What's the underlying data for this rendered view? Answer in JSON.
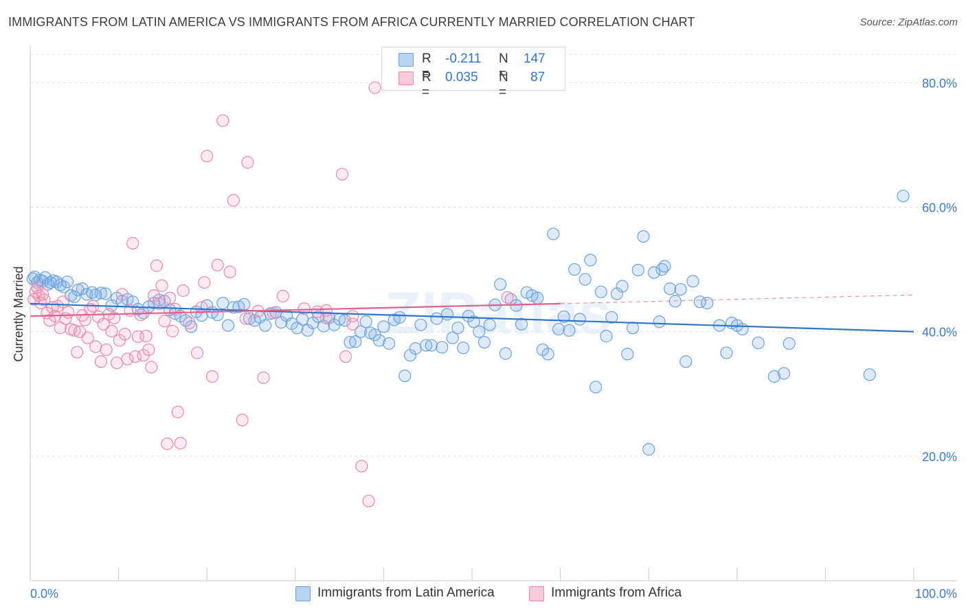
{
  "title": "IMMIGRANTS FROM LATIN AMERICA VS IMMIGRANTS FROM AFRICA CURRENTLY MARRIED CORRELATION CHART",
  "source": "Source: ZipAtlas.com",
  "watermark": "ZIPatlas",
  "legend_stats": [
    {
      "r_label": "R =",
      "r_value": "-0.211",
      "n_label": "N =",
      "n_value": "147"
    },
    {
      "r_label": "R =",
      "r_value": "0.035",
      "n_label": "N =",
      "n_value": "87"
    }
  ],
  "chart_data": {
    "type": "scatter",
    "xlabel": "",
    "ylabel": "Currently Married",
    "xlim": [
      0,
      100
    ],
    "ylim": [
      0,
      85
    ],
    "x_tick_labels": [
      "0.0%",
      "100.0%"
    ],
    "y_ticks": [
      20,
      40,
      60,
      80
    ],
    "y_tick_labels": [
      "20.0%",
      "40.0%",
      "60.0%",
      "80.0%"
    ],
    "grid": true,
    "legend": "bottom",
    "series": [
      {
        "name": "Immigrants from Latin America",
        "color": "#6aa3e0",
        "fill": "rgba(122,170,232,0.25)",
        "trend_color": "#2f75cc",
        "trend": {
          "x": [
            0,
            100
          ],
          "y": [
            44.5,
            40.0
          ]
        },
        "points": [
          [
            0.3,
            48.5
          ],
          [
            0.5,
            48.8
          ],
          [
            0.8,
            47.9
          ],
          [
            1.1,
            48.3
          ],
          [
            1.4,
            48.1
          ],
          [
            1.7,
            48.7
          ],
          [
            2.0,
            47.6
          ],
          [
            2.3,
            47.9
          ],
          [
            2.6,
            48.2
          ],
          [
            3.0,
            48.0
          ],
          [
            3.4,
            47.5
          ],
          [
            3.8,
            47.2
          ],
          [
            4.2,
            48.0
          ],
          [
            4.6,
            45.8
          ],
          [
            5.0,
            45.6
          ],
          [
            5.4,
            46.7
          ],
          [
            5.9,
            46.9
          ],
          [
            6.4,
            46.0
          ],
          [
            7.0,
            46.3
          ],
          [
            7.4,
            45.9
          ],
          [
            8.0,
            46.2
          ],
          [
            8.5,
            46.1
          ],
          [
            9.2,
            44.2
          ],
          [
            9.8,
            45.4
          ],
          [
            10.4,
            44.9
          ],
          [
            11.0,
            45.2
          ],
          [
            11.6,
            44.8
          ],
          [
            12.2,
            43.6
          ],
          [
            12.8,
            43.0
          ],
          [
            13.4,
            44.0
          ],
          [
            14.0,
            44.6
          ],
          [
            14.6,
            45.1
          ],
          [
            15.2,
            44.9
          ],
          [
            15.8,
            43.5
          ],
          [
            16.4,
            42.9
          ],
          [
            17.0,
            42.5
          ],
          [
            17.6,
            41.8
          ],
          [
            18.2,
            40.8
          ],
          [
            18.8,
            43.2
          ],
          [
            19.4,
            42.6
          ],
          [
            20.0,
            44.2
          ],
          [
            20.6,
            43.1
          ],
          [
            21.2,
            42.7
          ],
          [
            21.8,
            44.6
          ],
          [
            22.4,
            41.0
          ],
          [
            23.0,
            43.9
          ],
          [
            23.6,
            44.0
          ],
          [
            24.2,
            44.4
          ],
          [
            24.8,
            42.1
          ],
          [
            25.4,
            41.8
          ],
          [
            26.0,
            42.3
          ],
          [
            26.6,
            41.0
          ],
          [
            27.2,
            42.9
          ],
          [
            27.8,
            43.1
          ],
          [
            28.4,
            41.5
          ],
          [
            29.0,
            42.6
          ],
          [
            29.6,
            41.3
          ],
          [
            30.2,
            40.6
          ],
          [
            30.8,
            42.0
          ],
          [
            31.4,
            40.2
          ],
          [
            32.0,
            41.4
          ],
          [
            32.6,
            42.4
          ],
          [
            33.2,
            40.9
          ],
          [
            33.8,
            42.2
          ],
          [
            34.4,
            41.1
          ],
          [
            35.0,
            42.0
          ],
          [
            35.6,
            41.8
          ],
          [
            36.2,
            38.3
          ],
          [
            36.8,
            38.4
          ],
          [
            37.4,
            40.0
          ],
          [
            38.0,
            41.6
          ],
          [
            38.5,
            39.8
          ],
          [
            39.0,
            39.5
          ],
          [
            39.5,
            38.6
          ],
          [
            40.0,
            40.8
          ],
          [
            40.6,
            38.1
          ],
          [
            41.2,
            41.9
          ],
          [
            41.8,
            42.3
          ],
          [
            42.4,
            32.9
          ],
          [
            43.0,
            36.2
          ],
          [
            43.6,
            37.3
          ],
          [
            44.2,
            41.1
          ],
          [
            44.8,
            37.8
          ],
          [
            45.4,
            37.8
          ],
          [
            46.0,
            42.1
          ],
          [
            46.6,
            37.5
          ],
          [
            47.2,
            42.8
          ],
          [
            47.8,
            39.0
          ],
          [
            48.4,
            40.6
          ],
          [
            49.0,
            37.4
          ],
          [
            49.6,
            42.5
          ],
          [
            50.2,
            41.6
          ],
          [
            50.8,
            40.0
          ],
          [
            51.4,
            38.3
          ],
          [
            52.0,
            41.1
          ],
          [
            52.6,
            44.3
          ],
          [
            53.2,
            47.6
          ],
          [
            53.8,
            36.5
          ],
          [
            54.4,
            45.2
          ],
          [
            55.0,
            44.2
          ],
          [
            55.6,
            41.2
          ],
          [
            56.2,
            46.3
          ],
          [
            56.8,
            45.8
          ],
          [
            57.4,
            45.4
          ],
          [
            58.0,
            37.1
          ],
          [
            58.6,
            36.4
          ],
          [
            59.2,
            55.7
          ],
          [
            59.8,
            40.4
          ],
          [
            60.4,
            42.4
          ],
          [
            61.0,
            40.2
          ],
          [
            61.6,
            50.0
          ],
          [
            62.2,
            42.0
          ],
          [
            62.8,
            48.4
          ],
          [
            63.4,
            51.5
          ],
          [
            64.0,
            31.1
          ],
          [
            64.6,
            46.4
          ],
          [
            65.2,
            39.3
          ],
          [
            65.8,
            42.3
          ],
          [
            66.4,
            46.1
          ],
          [
            67.0,
            47.3
          ],
          [
            67.6,
            36.4
          ],
          [
            68.2,
            40.6
          ],
          [
            68.8,
            49.9
          ],
          [
            69.4,
            55.3
          ],
          [
            70.0,
            21.1
          ],
          [
            70.6,
            49.5
          ],
          [
            71.2,
            41.6
          ],
          [
            71.8,
            50.5
          ],
          [
            72.4,
            46.9
          ],
          [
            73.0,
            44.9
          ],
          [
            73.6,
            46.8
          ],
          [
            74.2,
            35.2
          ],
          [
            75.0,
            48.1
          ],
          [
            75.8,
            44.8
          ],
          [
            76.6,
            44.6
          ],
          [
            78.0,
            41.0
          ],
          [
            78.8,
            36.6
          ],
          [
            79.4,
            41.4
          ],
          [
            80.0,
            41.0
          ],
          [
            80.6,
            40.4
          ],
          [
            82.4,
            38.2
          ],
          [
            84.2,
            32.8
          ],
          [
            85.3,
            33.3
          ],
          [
            85.9,
            38.1
          ],
          [
            95.0,
            33.1
          ],
          [
            98.8,
            61.8
          ],
          [
            71.5,
            50.0
          ]
        ]
      },
      {
        "name": "Immigrants from Africa",
        "color": "#ee88aa",
        "fill": "rgba(245,160,190,0.22)",
        "trend_color": "#e0608a",
        "trend": {
          "x": [
            0,
            60
          ],
          "y": [
            42.5,
            44.5
          ]
        },
        "trend_ext": {
          "x": [
            60,
            100
          ],
          "y": [
            44.5,
            45.9
          ]
        },
        "points": [
          [
            0.4,
            45.2
          ],
          [
            0.6,
            46.4
          ],
          [
            0.8,
            47.1
          ],
          [
            1.0,
            45.8
          ],
          [
            1.2,
            44.6
          ],
          [
            1.4,
            46.0
          ],
          [
            1.6,
            45.1
          ],
          [
            1.9,
            43.0
          ],
          [
            2.2,
            41.8
          ],
          [
            2.5,
            43.9
          ],
          [
            2.8,
            42.5
          ],
          [
            3.1,
            44.1
          ],
          [
            3.4,
            40.6
          ],
          [
            3.7,
            44.8
          ],
          [
            4.0,
            42.1
          ],
          [
            4.3,
            43.1
          ],
          [
            4.6,
            40.4
          ],
          [
            5.0,
            40.2
          ],
          [
            5.3,
            36.7
          ],
          [
            5.6,
            40.0
          ],
          [
            5.9,
            42.6
          ],
          [
            6.2,
            41.9
          ],
          [
            6.5,
            39.0
          ],
          [
            6.8,
            43.6
          ],
          [
            7.1,
            44.1
          ],
          [
            7.4,
            37.6
          ],
          [
            7.7,
            42.4
          ],
          [
            8.0,
            35.2
          ],
          [
            8.3,
            41.2
          ],
          [
            8.6,
            37.1
          ],
          [
            8.9,
            42.8
          ],
          [
            9.2,
            40.1
          ],
          [
            9.5,
            42.2
          ],
          [
            9.8,
            35.0
          ],
          [
            10.1,
            38.6
          ],
          [
            10.4,
            46.0
          ],
          [
            10.7,
            39.6
          ],
          [
            11.0,
            35.6
          ],
          [
            11.3,
            43.4
          ],
          [
            11.6,
            54.2
          ],
          [
            11.9,
            36.0
          ],
          [
            12.2,
            39.2
          ],
          [
            12.5,
            42.7
          ],
          [
            12.8,
            36.2
          ],
          [
            13.1,
            39.3
          ],
          [
            13.4,
            37.1
          ],
          [
            13.7,
            34.3
          ],
          [
            14.0,
            45.8
          ],
          [
            14.3,
            50.6
          ],
          [
            14.6,
            44.5
          ],
          [
            14.9,
            47.4
          ],
          [
            15.2,
            41.7
          ],
          [
            15.5,
            22.0
          ],
          [
            15.8,
            45.4
          ],
          [
            16.1,
            40.1
          ],
          [
            16.4,
            43.6
          ],
          [
            16.7,
            27.1
          ],
          [
            17.0,
            22.1
          ],
          [
            17.3,
            46.6
          ],
          [
            18.0,
            41.4
          ],
          [
            18.9,
            36.6
          ],
          [
            19.4,
            43.9
          ],
          [
            19.7,
            47.9
          ],
          [
            20.0,
            68.2
          ],
          [
            20.6,
            32.8
          ],
          [
            21.2,
            50.7
          ],
          [
            21.8,
            73.9
          ],
          [
            22.6,
            49.6
          ],
          [
            23.0,
            61.1
          ],
          [
            24.0,
            25.8
          ],
          [
            24.4,
            42.1
          ],
          [
            24.6,
            67.2
          ],
          [
            25.8,
            43.3
          ],
          [
            26.4,
            32.6
          ],
          [
            27.5,
            43.0
          ],
          [
            28.6,
            45.7
          ],
          [
            31.0,
            43.7
          ],
          [
            32.5,
            43.2
          ],
          [
            33.5,
            43.4
          ],
          [
            33.5,
            42.2
          ],
          [
            35.3,
            65.3
          ],
          [
            35.7,
            36.0
          ],
          [
            36.5,
            42.5
          ],
          [
            36.5,
            41.2
          ],
          [
            37.5,
            18.4
          ],
          [
            38.3,
            12.8
          ],
          [
            39.0,
            79.2
          ],
          [
            54.0,
            45.5
          ]
        ]
      }
    ]
  }
}
